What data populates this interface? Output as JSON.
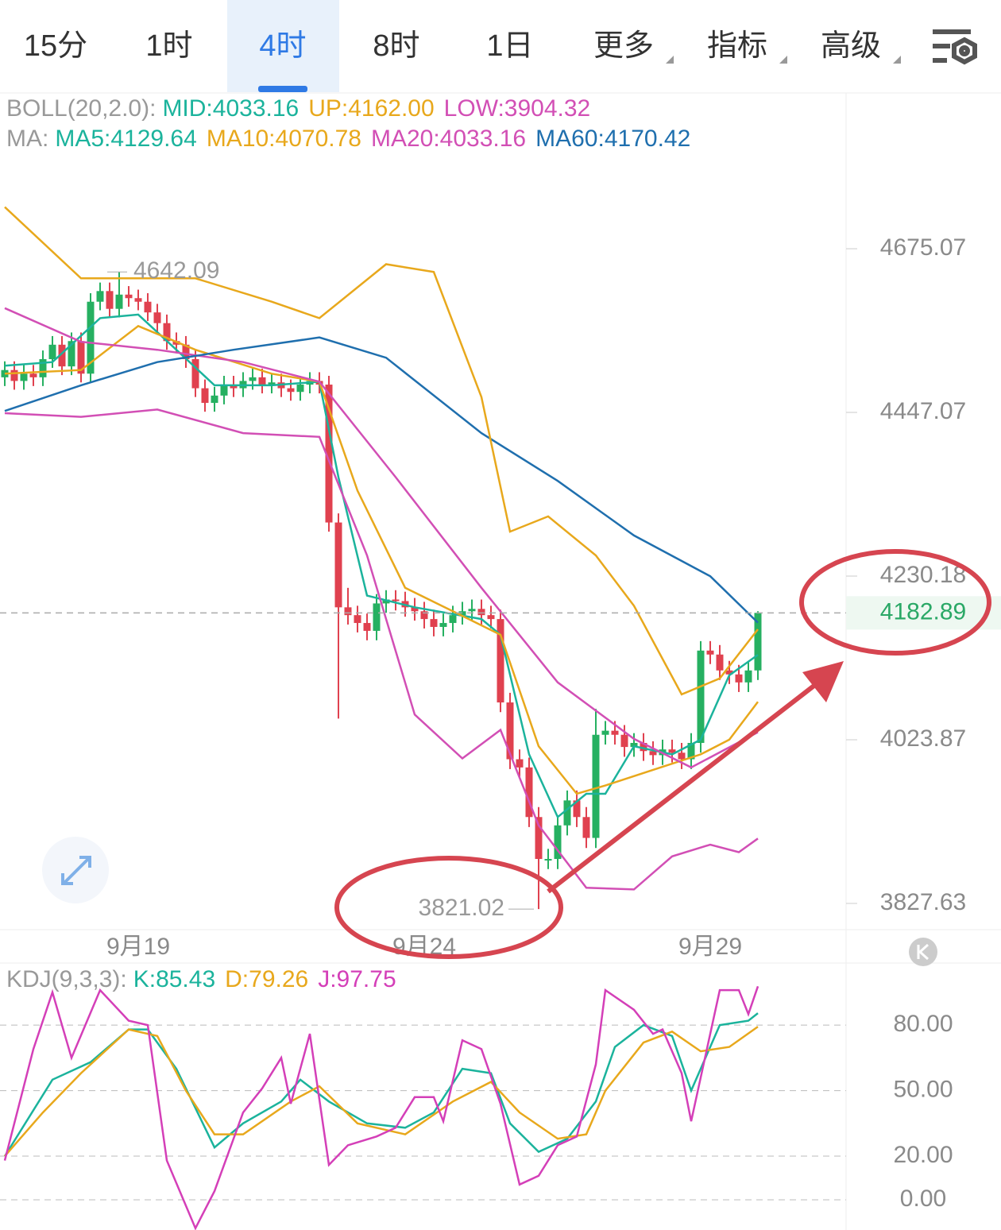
{
  "tabs": [
    "15分",
    "1时",
    "4时",
    "8时",
    "1日",
    "更多",
    "指标",
    "高级"
  ],
  "active_tab": 2,
  "chart_data": [
    {
      "type": "candlestick",
      "boll_label": "BOLL(20,2.0):",
      "mid_label": "MID:4033.16",
      "ma_label": "MA:",
      "log": true,
      "ylim": [
        3797.1,
        4901.7
      ],
      "yticks": [
        4675.07,
        4447.07,
        4230.18,
        4023.87,
        3827.63
      ],
      "xlim": [
        -0.5,
        88.25
      ],
      "xticks": [
        {
          "value": 14,
          "label": "9月19"
        },
        {
          "value": 44,
          "label": "9月24"
        },
        {
          "value": 74,
          "label": "9月29"
        }
      ],
      "up_color": "#26b061",
      "down_color": "#e0414f",
      "candles": {
        "x": [
          0,
          1,
          2,
          3,
          4,
          5,
          6,
          7,
          8,
          9,
          10,
          11,
          12,
          13,
          14,
          15,
          16,
          17,
          18,
          19,
          20,
          21,
          22,
          23,
          24,
          25,
          26,
          27,
          28,
          29,
          30,
          31,
          32,
          33,
          34,
          35,
          36,
          37,
          38,
          39,
          40,
          41,
          42,
          43,
          44,
          45,
          46,
          47,
          48,
          49,
          50,
          51,
          52,
          53,
          54,
          55,
          56,
          57,
          58,
          59,
          60,
          61,
          62,
          63,
          64,
          65,
          66,
          67,
          68,
          69,
          70,
          71,
          72,
          73,
          74,
          75,
          76,
          77,
          78,
          79
        ],
        "open": [
          4495,
          4505,
          4490,
          4500,
          4495,
          4520,
          4540,
          4510,
          4545,
          4500,
          4600,
          4615,
          4590,
          4610,
          4605,
          4600,
          4585,
          4570,
          4545,
          4540,
          4520,
          4480,
          4460,
          4470,
          4485,
          4480,
          4490,
          4495,
          4485,
          4488,
          4480,
          4475,
          4485,
          4490,
          4485,
          4300,
          4190,
          4180,
          4170,
          4160,
          4195,
          4200,
          4198,
          4190,
          4185,
          4175,
          4165,
          4170,
          4180,
          4185,
          4188,
          4180,
          4175,
          4070,
          4000,
          3990,
          3930,
          3880,
          3880,
          3920,
          3950,
          3930,
          3905,
          4030,
          4035,
          4030,
          4015,
          4020,
          4010,
          4005,
          4012,
          4008,
          4000,
          4020,
          4135,
          4130,
          4110,
          4105,
          4095,
          4110
        ],
        "high": [
          4517,
          4517,
          4512,
          4512,
          4532,
          4552,
          4552,
          4557,
          4557,
          4612,
          4627,
          4627,
          4642.09,
          4622,
          4617,
          4612,
          4597,
          4582,
          4557,
          4552,
          4532,
          4492,
          4482,
          4497,
          4497,
          4502,
          4507,
          4507,
          4500,
          4500,
          4492,
          4497,
          4502,
          4502,
          4497,
          4312,
          4215,
          4192,
          4182,
          4207,
          4212,
          4212,
          4210,
          4202,
          4197,
          4187,
          4182,
          4192,
          4197,
          4200,
          4200,
          4192,
          4187,
          4082,
          4012,
          4002,
          3942,
          3892,
          3932,
          3962,
          3962,
          3942,
          4062,
          4047,
          4047,
          4042,
          4032,
          4032,
          4022,
          4024,
          4024,
          4020,
          4032,
          4147,
          4147,
          4142,
          4122,
          4117,
          4122,
          4185
        ],
        "low": [
          4483,
          4478,
          4478,
          4483,
          4483,
          4508,
          4498,
          4498,
          4488,
          4488,
          4588,
          4578,
          4578,
          4593,
          4588,
          4573,
          4558,
          4533,
          4528,
          4508,
          4468,
          4448,
          4448,
          4458,
          4468,
          4468,
          4478,
          4473,
          4473,
          4468,
          4463,
          4463,
          4473,
          4473,
          4288,
          4050,
          4168,
          4158,
          4148,
          4148,
          4183,
          4186,
          4178,
          4173,
          4163,
          4153,
          4153,
          4158,
          4168,
          4173,
          4168,
          4163,
          4058,
          3988,
          3978,
          3918,
          3821.02,
          3868,
          3868,
          3908,
          3918,
          3893,
          3893,
          4018,
          4018,
          4003,
          4003,
          3998,
          3993,
          3993,
          3996,
          3988,
          3988,
          4008,
          4118,
          4098,
          4093,
          4083,
          4083,
          4098
        ],
        "close": [
          4505,
          4490,
          4500,
          4495,
          4520,
          4540,
          4510,
          4545,
          4500,
          4600,
          4615,
          4590,
          4610,
          4605,
          4600,
          4585,
          4570,
          4545,
          4540,
          4520,
          4480,
          4460,
          4470,
          4485,
          4480,
          4490,
          4495,
          4485,
          4488,
          4480,
          4475,
          4485,
          4490,
          4485,
          4300,
          4190,
          4180,
          4170,
          4160,
          4195,
          4200,
          4198,
          4190,
          4185,
          4175,
          4165,
          4170,
          4180,
          4185,
          4188,
          4180,
          4175,
          4070,
          4000,
          3990,
          3930,
          3880,
          3880,
          3920,
          3950,
          3930,
          3905,
          4030,
          4035,
          4030,
          4015,
          4020,
          4010,
          4005,
          4012,
          4008,
          4000,
          4020,
          4135,
          4130,
          4110,
          4105,
          4095,
          4110,
          4182.89
        ]
      },
      "series": [
        {
          "name": "MA5:4129.64",
          "color": "#1bb39c",
          "x": [
            0,
            5,
            10,
            14,
            18,
            22,
            28,
            33,
            35,
            38,
            43,
            50,
            52,
            55,
            58,
            61,
            63,
            66,
            70,
            73,
            76,
            79
          ],
          "values": [
            4511,
            4516,
            4577,
            4582,
            4533,
            4484,
            4484,
            4489,
            4360,
            4205,
            4190,
            4175,
            4155,
            4006,
            3930,
            3958,
            3958,
            4016,
            4006,
            4024,
            4104,
            4129.64
          ]
        },
        {
          "name": "MA10:4070.78",
          "color": "#e8a81c",
          "x": [
            0,
            8,
            14,
            20,
            28,
            33,
            37,
            42,
            47,
            52,
            56,
            60,
            63,
            68,
            73,
            76,
            79
          ],
          "values": [
            4500,
            4505,
            4566,
            4533,
            4500,
            4489,
            4342,
            4215,
            4185,
            4155,
            4016,
            3958,
            3968,
            3987,
            4006,
            4024,
            4070.78
          ]
        },
        {
          "name": "MA20:4033.16",
          "color": "#d24fb5",
          "x": [
            0,
            8,
            16,
            25,
            33,
            41,
            50,
            58,
            66,
            72,
            79
          ],
          "values": [
            4591,
            4544,
            4533,
            4516,
            4489,
            4360,
            4215,
            4095,
            4025,
            3990,
            4033.16
          ]
        },
        {
          "name": "MA60:4170.42",
          "color": "#1f6fae",
          "x": [
            0,
            8,
            16,
            24,
            33,
            40,
            50,
            58,
            66,
            74,
            79
          ],
          "values": [
            4449,
            4484,
            4516,
            4533,
            4550,
            4522,
            4419,
            4355,
            4283,
            4230,
            4170.42
          ]
        },
        {
          "name": "UP:4162.00",
          "color": "#e8a81c",
          "x": [
            0,
            8,
            20,
            28,
            33,
            40,
            45,
            50,
            53,
            57,
            62,
            66,
            71,
            75,
            79
          ],
          "values": [
            4735,
            4633,
            4633,
            4600,
            4577,
            4653,
            4642,
            4468,
            4288,
            4308,
            4257,
            4192,
            4080,
            4100,
            4162
          ]
        },
        {
          "name": "LOW:3904.32",
          "color": "#d24fb5",
          "x": [
            0,
            8,
            16,
            25,
            33,
            38,
            43,
            48,
            52,
            56,
            61,
            66,
            70,
            74,
            77,
            79
          ],
          "values": [
            4446,
            4441,
            4451,
            4419,
            4414,
            4257,
            4055,
            4001,
            4036,
            3920,
            3846,
            3844,
            3883,
            3897,
            3888,
            3904.32
          ]
        }
      ]
    },
    {
      "type": "line",
      "indicator_label": "KDJ(9,3,3):",
      "xlim": [
        -0.5,
        88.25
      ],
      "ylim": [
        -13.8,
        107.3
      ],
      "yticks": [
        {
          "value": 80,
          "label": "80.00"
        },
        {
          "value": 50,
          "label": "50.00"
        },
        {
          "value": 20,
          "label": "20.00"
        },
        {
          "value": 0,
          "label": "0.00"
        }
      ],
      "grid": true,
      "series": [
        {
          "name": "K:85.43",
          "color": "#1bb39c",
          "x": [
            0,
            5,
            9,
            13,
            15,
            18,
            22,
            25,
            29,
            31,
            34,
            38,
            42,
            45,
            48,
            51,
            53,
            56,
            59,
            62,
            64,
            67,
            70,
            72,
            75,
            78,
            79
          ],
          "values": [
            20,
            55,
            63,
            78,
            78,
            60,
            24,
            35,
            45,
            55,
            45,
            35,
            33,
            40,
            60,
            58,
            35,
            22,
            28,
            45,
            70,
            80,
            75,
            50,
            80,
            82,
            85.43
          ]
        },
        {
          "name": "D:79.26",
          "color": "#e8a81c",
          "x": [
            0,
            4,
            8,
            13,
            16,
            19,
            22,
            25,
            30,
            33,
            37,
            42,
            47,
            51,
            54,
            58,
            61,
            63,
            67,
            70,
            73,
            76,
            79
          ],
          "values": [
            20,
            40,
            58,
            78,
            75,
            50,
            30,
            30,
            45,
            52,
            35,
            30,
            45,
            54,
            40,
            28,
            30,
            50,
            72,
            77,
            68,
            70,
            79.26
          ]
        },
        {
          "name": "J:97.75",
          "color": "#d43fb8",
          "x": [
            0,
            3,
            5,
            7,
            10,
            13,
            15,
            17,
            20,
            22,
            25,
            27,
            29,
            30,
            32,
            34,
            36,
            39,
            41,
            43,
            45,
            46,
            48,
            50,
            52,
            54,
            56,
            58,
            60,
            62,
            63,
            66,
            68,
            69,
            71,
            72,
            75,
            77,
            78,
            79
          ],
          "values": [
            18,
            69,
            95,
            65,
            96,
            82,
            80,
            18,
            -13,
            4,
            40,
            51,
            65,
            44,
            76,
            16,
            25,
            29,
            33,
            47,
            47,
            36,
            73,
            69,
            44,
            7,
            11,
            25,
            29,
            62,
            96,
            87,
            76,
            78,
            58,
            36,
            96,
            96,
            85,
            97.75
          ]
        }
      ]
    }
  ]
}
